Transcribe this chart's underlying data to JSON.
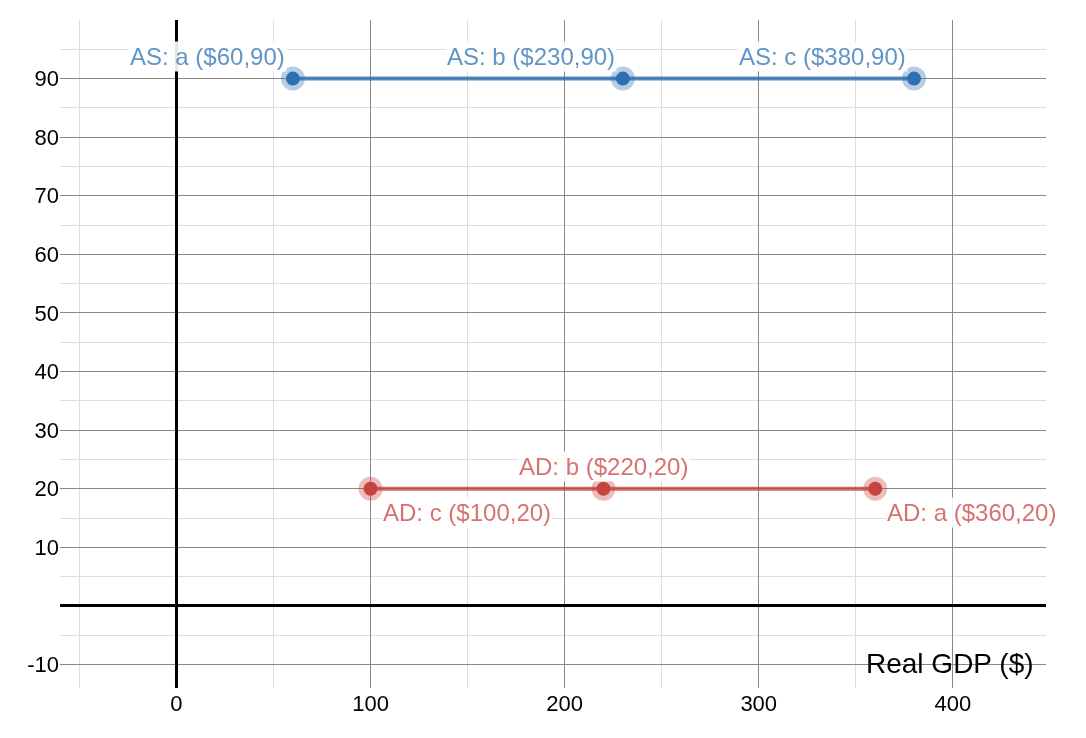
{
  "chart_data": {
    "type": "line",
    "xlabel": "Real GDP ($)",
    "series": [
      {
        "color": "#2d70b3",
        "x": [
          60,
          230,
          380
        ],
        "values": [
          90,
          90,
          90
        ]
      },
      {
        "color": "#c74440",
        "x": [
          100,
          220,
          360
        ],
        "values": [
          20,
          20,
          20
        ]
      }
    ],
    "annotations": [
      {
        "text": "AS: a ($60,90)",
        "x": 60,
        "y": 90
      },
      {
        "text": "AS: b ($230,90)",
        "x": 230,
        "y": 90
      },
      {
        "text": "AS: c ($380,90)",
        "x": 380,
        "y": 90
      },
      {
        "text": "AD: c ($100,20)",
        "x": 100,
        "y": 20
      },
      {
        "text": "AD: b ($220,20)",
        "x": 220,
        "y": 20
      },
      {
        "text": "AD: a ($360,20)",
        "x": 360,
        "y": 20
      }
    ],
    "xlim": [
      -60,
      448
    ],
    "ylim": [
      -14,
      100
    ],
    "xticks": [
      0,
      100,
      200,
      300,
      400
    ],
    "yticks": [
      -10,
      10,
      20,
      30,
      40,
      50,
      60,
      70,
      80,
      90
    ],
    "grid": true,
    "marker": "circle",
    "line_style": "solid"
  }
}
